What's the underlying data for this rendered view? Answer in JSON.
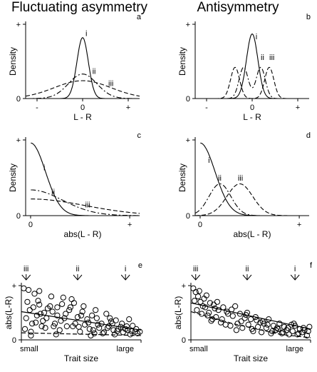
{
  "titles": {
    "left": "Fluctuating asymmetry",
    "right": "Antisymmetry"
  },
  "chart_data": [
    {
      "id": "a",
      "type": "line",
      "panel_letter": "a",
      "title": "",
      "xlabel": "L - R",
      "ylabel": "Density",
      "xlim": [
        -1,
        1
      ],
      "ylim": [
        0,
        1
      ],
      "xticks": [
        {
          "v": -0.8,
          "label": "-"
        },
        {
          "v": 0,
          "label": "0"
        },
        {
          "v": 0.8,
          "label": "+"
        }
      ],
      "yticks": [
        {
          "v": 0,
          "label": "0"
        },
        {
          "v": 1,
          "label": "+"
        }
      ],
      "series": [
        {
          "name": "i",
          "dist": "normal",
          "mean": 0,
          "sd": 0.1,
          "peak": 0.82,
          "style": "solid"
        },
        {
          "name": "ii",
          "dist": "normal",
          "mean": 0,
          "sd": 0.25,
          "peak": 0.33,
          "style": "dashdot"
        },
        {
          "name": "iii",
          "dist": "normal",
          "mean": 0,
          "sd": 0.5,
          "peak": 0.24,
          "style": "dash"
        }
      ],
      "labels": [
        {
          "text": "i",
          "x": 0.05,
          "y": 0.84
        },
        {
          "text": "ii",
          "x": 0.17,
          "y": 0.33
        },
        {
          "text": "iii",
          "x": 0.45,
          "y": 0.17
        }
      ]
    },
    {
      "id": "b",
      "type": "line",
      "panel_letter": "b",
      "title": "",
      "xlabel": "L - R",
      "ylabel": "Density",
      "xlim": [
        -1,
        1
      ],
      "ylim": [
        0,
        1
      ],
      "xticks": [
        {
          "v": -0.8,
          "label": "-"
        },
        {
          "v": 0,
          "label": "0"
        },
        {
          "v": 0.8,
          "label": "+"
        }
      ],
      "yticks": [
        {
          "v": 0,
          "label": "0"
        },
        {
          "v": 1,
          "label": "+"
        }
      ],
      "series": [
        {
          "name": "i",
          "dist": "bimodal",
          "offset": 0,
          "sd": 0.1,
          "peak": 0.87,
          "style": "solid"
        },
        {
          "name": "ii",
          "dist": "bimodal",
          "offset": 0.15,
          "sd": 0.08,
          "peak": 0.42,
          "style": "dashdot"
        },
        {
          "name": "iii",
          "dist": "bimodal",
          "offset": 0.3,
          "sd": 0.08,
          "peak": 0.42,
          "style": "dash"
        }
      ],
      "labels": [
        {
          "text": "i",
          "x": 0.06,
          "y": 0.8
        },
        {
          "text": "ii",
          "x": 0.15,
          "y": 0.52
        },
        {
          "text": "iii",
          "x": 0.3,
          "y": 0.52
        }
      ]
    },
    {
      "id": "c",
      "type": "line",
      "panel_letter": "c",
      "title": "",
      "xlabel": "abs(L - R)",
      "ylabel": "Density",
      "xlim": [
        -0.05,
        1.1
      ],
      "ylim": [
        0,
        1
      ],
      "xticks": [
        {
          "v": 0,
          "label": "0"
        },
        {
          "v": 1,
          "label": "+"
        }
      ],
      "yticks": [
        {
          "v": 0,
          "label": "0"
        },
        {
          "v": 1,
          "label": "+"
        }
      ],
      "series": [
        {
          "name": "i",
          "dist": "halfnormal",
          "sd": 0.15,
          "peak": 0.96,
          "style": "solid"
        },
        {
          "name": "ii",
          "dist": "halfnormal",
          "sd": 0.32,
          "peak": 0.34,
          "style": "dashdot"
        },
        {
          "name": "iii",
          "dist": "halfnormal",
          "sd": 0.55,
          "peak": 0.22,
          "style": "dash"
        }
      ],
      "labels": [
        {
          "text": "i",
          "x": 0.13,
          "y": 0.6
        },
        {
          "text": "ii",
          "x": 0.21,
          "y": 0.28
        },
        {
          "text": "iii",
          "x": 0.55,
          "y": 0.11
        }
      ]
    },
    {
      "id": "d",
      "type": "line",
      "panel_letter": "d",
      "title": "",
      "xlabel": "abs(L - R)",
      "ylabel": "Density",
      "xlim": [
        -0.05,
        1.1
      ],
      "ylim": [
        0,
        1
      ],
      "xticks": [
        {
          "v": 0,
          "label": "0"
        },
        {
          "v": 1,
          "label": "+"
        }
      ],
      "yticks": [
        {
          "v": 0,
          "label": "0"
        },
        {
          "v": 1,
          "label": "+"
        }
      ],
      "series": [
        {
          "name": "i",
          "dist": "halfnormal",
          "sd": 0.15,
          "peak": 0.96,
          "style": "solid"
        },
        {
          "name": "ii",
          "dist": "normal",
          "mean": 0.2,
          "sd": 0.11,
          "peak": 0.42,
          "style": "dashdot"
        },
        {
          "name": "iii",
          "dist": "normal",
          "mean": 0.4,
          "sd": 0.13,
          "peak": 0.42,
          "style": "dash"
        }
      ],
      "labels": [
        {
          "text": "i",
          "x": 0.08,
          "y": 0.7
        },
        {
          "text": "ii",
          "x": 0.18,
          "y": 0.46
        },
        {
          "text": "iii",
          "x": 0.38,
          "y": 0.46
        }
      ]
    },
    {
      "id": "e",
      "type": "scatter",
      "panel_letter": "e",
      "title": "",
      "xlabel": "Trait size",
      "ylabel": "abs(L-R)",
      "xlim": [
        0,
        1
      ],
      "ylim": [
        0,
        1
      ],
      "xticks": [
        {
          "v": 0,
          "label": "small"
        },
        {
          "v": 1,
          "label": "large"
        }
      ],
      "yticks": [
        {
          "v": 0,
          "label": "0"
        },
        {
          "v": 1,
          "label": "+"
        }
      ],
      "arrows": [
        {
          "x": 0.04,
          "label": "iii"
        },
        {
          "x": 0.47,
          "label": "ii"
        },
        {
          "x": 0.87,
          "label": "i"
        }
      ],
      "lines": [
        {
          "name": "mean",
          "style": "solid",
          "x": [
            0,
            1
          ],
          "y": [
            0.52,
            0.18
          ]
        },
        {
          "name": "lower",
          "style": "dash",
          "x": [
            0,
            1
          ],
          "y": [
            0.13,
            0.08
          ]
        }
      ],
      "points": {
        "x": [
          0.02,
          0.05,
          0.07,
          0.09,
          0.11,
          0.13,
          0.15,
          0.17,
          0.19,
          0.21,
          0.03,
          0.06,
          0.1,
          0.14,
          0.18,
          0.22,
          0.04,
          0.08,
          0.12,
          0.16,
          0.2,
          0.24,
          0.26,
          0.28,
          0.3,
          0.32,
          0.34,
          0.36,
          0.38,
          0.4,
          0.25,
          0.29,
          0.33,
          0.37,
          0.41,
          0.43,
          0.45,
          0.47,
          0.49,
          0.51,
          0.53,
          0.55,
          0.57,
          0.59,
          0.61,
          0.44,
          0.48,
          0.52,
          0.56,
          0.6,
          0.63,
          0.65,
          0.67,
          0.69,
          0.71,
          0.73,
          0.75,
          0.77,
          0.79,
          0.81,
          0.64,
          0.68,
          0.72,
          0.76,
          0.8,
          0.83,
          0.85,
          0.87,
          0.89,
          0.91,
          0.93,
          0.95,
          0.97,
          0.84,
          0.88,
          0.92,
          0.96,
          0.99,
          0.74,
          0.62,
          0.42,
          0.35,
          0.27,
          0.15,
          0.08,
          0.58,
          0.78,
          0.9,
          0.5,
          0.3
        ],
        "y": [
          0.95,
          0.7,
          0.55,
          0.3,
          0.85,
          0.45,
          0.65,
          0.25,
          0.5,
          0.4,
          0.2,
          0.92,
          0.6,
          0.72,
          0.35,
          0.58,
          0.4,
          0.15,
          0.32,
          0.48,
          0.22,
          0.62,
          0.52,
          0.3,
          0.45,
          0.18,
          0.66,
          0.4,
          0.25,
          0.55,
          0.8,
          0.1,
          0.35,
          0.48,
          0.6,
          0.25,
          0.3,
          0.42,
          0.15,
          0.52,
          0.28,
          0.38,
          0.2,
          0.45,
          0.12,
          0.68,
          0.24,
          0.62,
          0.32,
          0.18,
          0.4,
          0.22,
          0.3,
          0.14,
          0.48,
          0.25,
          0.34,
          0.18,
          0.36,
          0.2,
          0.28,
          0.12,
          0.22,
          0.3,
          0.16,
          0.24,
          0.14,
          0.2,
          0.18,
          0.1,
          0.26,
          0.15,
          0.12,
          0.3,
          0.25,
          0.16,
          0.2,
          0.15,
          0.4,
          0.55,
          0.75,
          0.78,
          0.25,
          0.9,
          0.08,
          0.08,
          0.1,
          0.38,
          0.45,
          0.6
        ]
      }
    },
    {
      "id": "f",
      "type": "scatter",
      "panel_letter": "f",
      "title": "",
      "xlabel": "Trait size",
      "ylabel": "abs(L-R)",
      "xlim": [
        0,
        1
      ],
      "ylim": [
        0,
        1
      ],
      "xticks": [
        {
          "v": 0,
          "label": "small"
        },
        {
          "v": 1,
          "label": "large"
        }
      ],
      "yticks": [
        {
          "v": 0,
          "label": "0"
        },
        {
          "v": 1,
          "label": "+"
        }
      ],
      "arrows": [
        {
          "x": 0.04,
          "label": "iii"
        },
        {
          "x": 0.47,
          "label": "ii"
        },
        {
          "x": 0.87,
          "label": "i"
        }
      ],
      "lines": [
        {
          "name": "mean",
          "style": "solid",
          "x": [
            0,
            1
          ],
          "y": [
            0.68,
            0.2
          ]
        },
        {
          "name": "lower",
          "style": "dash",
          "x": [
            0,
            0.35,
            0.75,
            1
          ],
          "y": [
            0.52,
            0.3,
            0.1,
            0.04
          ]
        }
      ],
      "points": {
        "x": [
          0.02,
          0.04,
          0.06,
          0.08,
          0.1,
          0.03,
          0.05,
          0.07,
          0.09,
          0.11,
          0.12,
          0.14,
          0.16,
          0.18,
          0.2,
          0.13,
          0.15,
          0.17,
          0.19,
          0.21,
          0.23,
          0.25,
          0.27,
          0.29,
          0.31,
          0.22,
          0.26,
          0.3,
          0.33,
          0.35,
          0.37,
          0.39,
          0.41,
          0.43,
          0.45,
          0.34,
          0.38,
          0.42,
          0.46,
          0.48,
          0.5,
          0.52,
          0.54,
          0.56,
          0.58,
          0.47,
          0.51,
          0.55,
          0.59,
          0.61,
          0.63,
          0.65,
          0.67,
          0.69,
          0.71,
          0.6,
          0.64,
          0.68,
          0.72,
          0.74,
          0.76,
          0.78,
          0.8,
          0.82,
          0.84,
          0.73,
          0.77,
          0.81,
          0.85,
          0.87,
          0.89,
          0.91,
          0.93,
          0.95,
          0.97,
          0.86,
          0.9,
          0.94,
          0.98,
          0.99
        ],
        "y": [
          0.95,
          0.88,
          0.8,
          0.7,
          0.62,
          0.72,
          0.55,
          0.9,
          0.48,
          0.76,
          0.6,
          0.45,
          0.68,
          0.38,
          0.58,
          0.82,
          0.5,
          0.35,
          0.65,
          0.42,
          0.55,
          0.32,
          0.6,
          0.28,
          0.48,
          0.7,
          0.38,
          0.52,
          0.26,
          0.44,
          0.62,
          0.3,
          0.48,
          0.22,
          0.4,
          0.56,
          0.18,
          0.34,
          0.46,
          0.28,
          0.38,
          0.16,
          0.42,
          0.24,
          0.32,
          0.5,
          0.2,
          0.36,
          0.14,
          0.3,
          0.22,
          0.38,
          0.12,
          0.26,
          0.18,
          0.34,
          0.28,
          0.16,
          0.22,
          0.3,
          0.12,
          0.24,
          0.18,
          0.1,
          0.28,
          0.2,
          0.14,
          0.22,
          0.16,
          0.26,
          0.1,
          0.2,
          0.14,
          0.18,
          0.08,
          0.3,
          0.12,
          0.22,
          0.16,
          0.24
        ]
      }
    }
  ]
}
